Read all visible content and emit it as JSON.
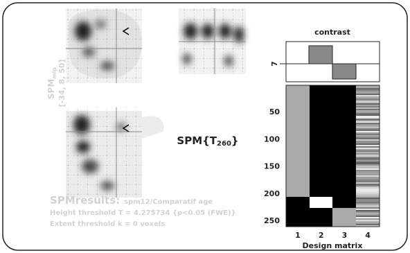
{
  "glass_brain": {
    "label": "SPM",
    "label_sub": "mip",
    "coords": "[-34, 8, 50]"
  },
  "statistic": {
    "prefix": "SPM{T",
    "sub": "260",
    "suffix": "}"
  },
  "results": {
    "heading": "SPMresults:",
    "analysis": "spm12/Comparatif age",
    "height": "Height threshold T = 4.275734 {p<0.05 (FWE)}",
    "extent": "Extent threshold k = 0 voxels"
  },
  "contrast": {
    "title": "contrast",
    "axis_label": "7"
  },
  "design_matrix": {
    "title": "Design matrix",
    "row_labels": [
      "50",
      "100",
      "150",
      "200",
      "250"
    ],
    "column_labels": [
      "1",
      "2",
      "3",
      "4"
    ]
  }
}
